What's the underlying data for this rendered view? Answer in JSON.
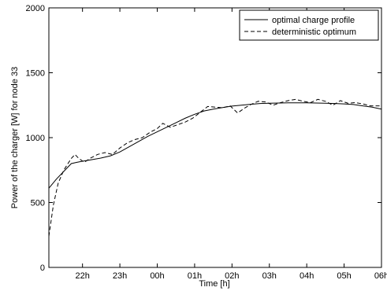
{
  "chart_data": {
    "type": "line",
    "title": "",
    "xlabel": "Time [h]",
    "ylabel": "Power of the charger [W] for node 33",
    "x_ticks": [
      {
        "x": 22,
        "label": "22h"
      },
      {
        "x": 23,
        "label": "23h"
      },
      {
        "x": 24,
        "label": "00h"
      },
      {
        "x": 25,
        "label": "01h"
      },
      {
        "x": 26,
        "label": "02h"
      },
      {
        "x": 27,
        "label": "03h"
      },
      {
        "x": 28,
        "label": "04h"
      },
      {
        "x": 29,
        "label": "05h"
      },
      {
        "x": 30,
        "label": "06h"
      }
    ],
    "y_ticks": [
      0,
      500,
      1000,
      1500,
      2000
    ],
    "xlim": [
      21.1,
      30.0
    ],
    "ylim": [
      0,
      2000
    ],
    "grid": false,
    "legend_position": "top-right",
    "series": [
      {
        "name": "optimal charge profile",
        "style": "solid",
        "color": "#000000",
        "x": [
          21.1,
          21.3,
          21.5,
          21.7,
          21.85,
          22.0,
          22.25,
          22.5,
          22.75,
          23.0,
          23.25,
          23.5,
          23.75,
          24.0,
          24.25,
          24.5,
          24.75,
          25.0,
          25.25,
          25.5,
          25.75,
          26.0,
          26.25,
          26.5,
          26.75,
          27.0,
          27.25,
          27.5,
          27.75,
          28.0,
          28.25,
          28.5,
          28.75,
          29.0,
          29.25,
          29.5,
          29.75,
          30.0
        ],
        "y": [
          610,
          680,
          740,
          800,
          810,
          818,
          830,
          843,
          860,
          890,
          930,
          970,
          1010,
          1045,
          1080,
          1115,
          1150,
          1180,
          1205,
          1220,
          1232,
          1243,
          1250,
          1257,
          1263,
          1265,
          1267,
          1268,
          1268,
          1268,
          1267,
          1265,
          1263,
          1260,
          1255,
          1245,
          1235,
          1220
        ]
      },
      {
        "name": "deterministic optimum",
        "style": "dashed",
        "color": "#000000",
        "x": [
          21.1,
          21.22,
          21.35,
          21.5,
          21.7,
          21.8,
          21.9,
          22.05,
          22.2,
          22.4,
          22.6,
          22.8,
          23.0,
          23.2,
          23.4,
          23.6,
          23.8,
          24.0,
          24.15,
          24.35,
          24.55,
          24.75,
          24.95,
          25.15,
          25.35,
          25.55,
          25.75,
          25.95,
          26.15,
          26.35,
          26.5,
          26.7,
          26.9,
          27.1,
          27.3,
          27.5,
          27.7,
          27.9,
          28.1,
          28.3,
          28.5,
          28.7,
          28.9,
          29.1,
          29.3,
          29.5,
          29.7,
          30.0
        ],
        "y": [
          240,
          480,
          650,
          750,
          840,
          870,
          840,
          810,
          840,
          870,
          885,
          870,
          920,
          960,
          985,
          1000,
          1040,
          1070,
          1110,
          1080,
          1100,
          1120,
          1150,
          1195,
          1240,
          1235,
          1230,
          1245,
          1190,
          1230,
          1255,
          1280,
          1275,
          1250,
          1270,
          1285,
          1295,
          1280,
          1270,
          1295,
          1280,
          1250,
          1285,
          1265,
          1270,
          1260,
          1245,
          1245
        ]
      }
    ]
  }
}
